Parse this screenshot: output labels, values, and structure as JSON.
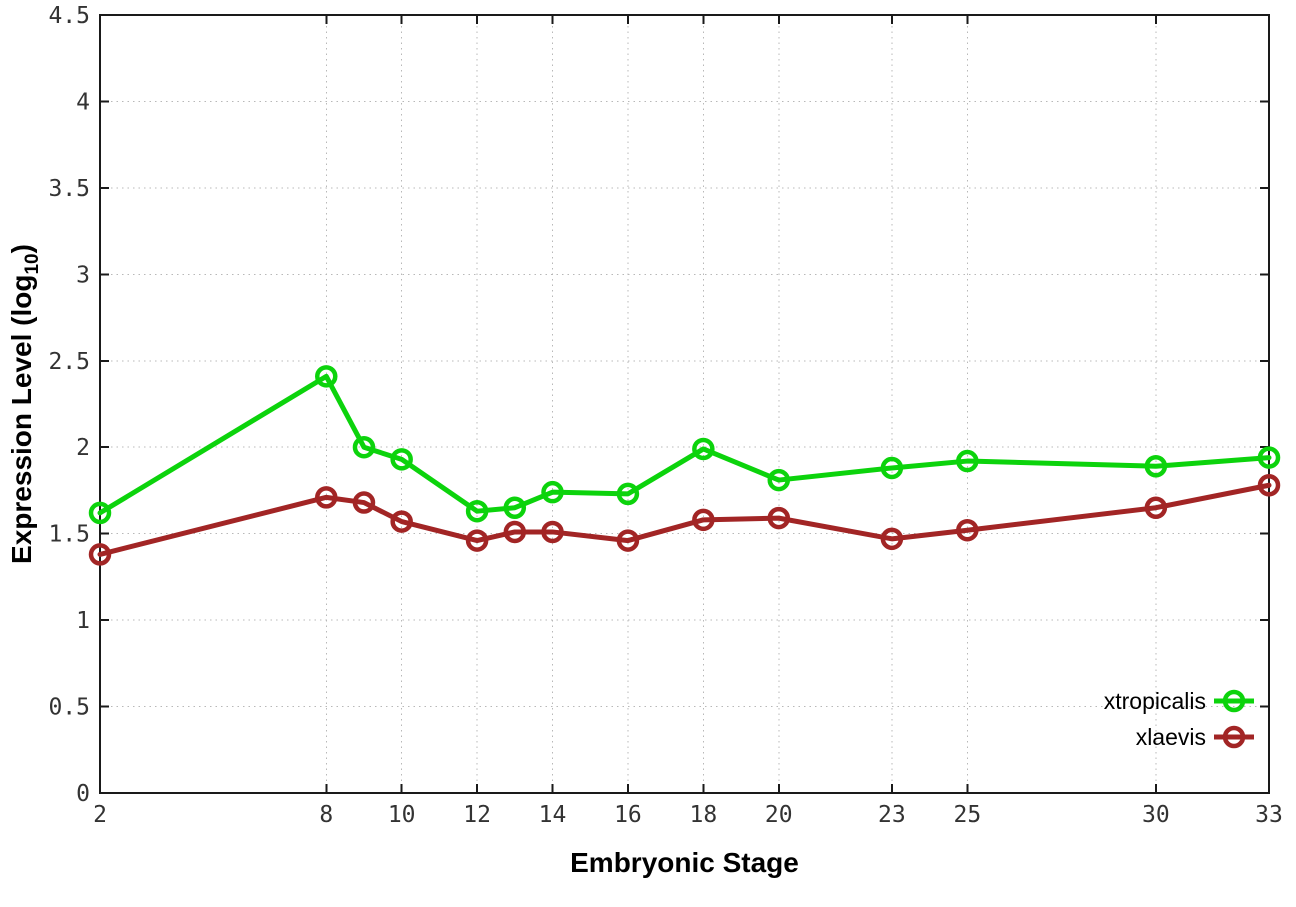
{
  "chart_data": {
    "type": "line",
    "title": "",
    "xlabel": "Embryonic Stage",
    "ylabel_prefix": "Expression Level (log",
    "ylabel_subscript": "10",
    "ylabel_suffix": ")",
    "x": [
      2,
      8,
      9,
      10,
      12,
      13,
      14,
      16,
      18,
      20,
      23,
      25,
      30,
      33
    ],
    "xticks": [
      2,
      8,
      10,
      12,
      14,
      16,
      18,
      20,
      23,
      25,
      30,
      33
    ],
    "xtick_labels": [
      "2",
      "8",
      "10",
      "12",
      "14",
      "16",
      "18",
      "20",
      "23",
      "25",
      "30",
      "33"
    ],
    "yticks": [
      0,
      0.5,
      1,
      1.5,
      2,
      2.5,
      3,
      3.5,
      4,
      4.5
    ],
    "ytick_labels": [
      "0",
      "0.5",
      "1",
      "1.5",
      "2",
      "2.5",
      "3",
      "3.5",
      "4",
      "4.5"
    ],
    "xlim": [
      2,
      33
    ],
    "ylim": [
      0,
      4.5
    ],
    "grid": true,
    "legend_position": "bottom-right",
    "series": [
      {
        "name": "xtropicalis",
        "color": "#0cd30c",
        "values": [
          1.62,
          2.41,
          2.0,
          1.93,
          1.63,
          1.65,
          1.74,
          1.73,
          1.99,
          1.81,
          1.88,
          1.92,
          1.89,
          1.94
        ]
      },
      {
        "name": "xlaevis",
        "color": "#a22525",
        "values": [
          1.38,
          1.71,
          1.68,
          1.57,
          1.46,
          1.51,
          1.51,
          1.46,
          1.58,
          1.59,
          1.47,
          1.52,
          1.65,
          1.78
        ]
      }
    ],
    "style": {
      "background": "#ffffff",
      "border_color": "#1a1a1a",
      "grid_color": "#b8b8b8",
      "tick_label_color": "#333333",
      "axis_title_color": "#000000",
      "legend_text_color": "#000000"
    }
  }
}
